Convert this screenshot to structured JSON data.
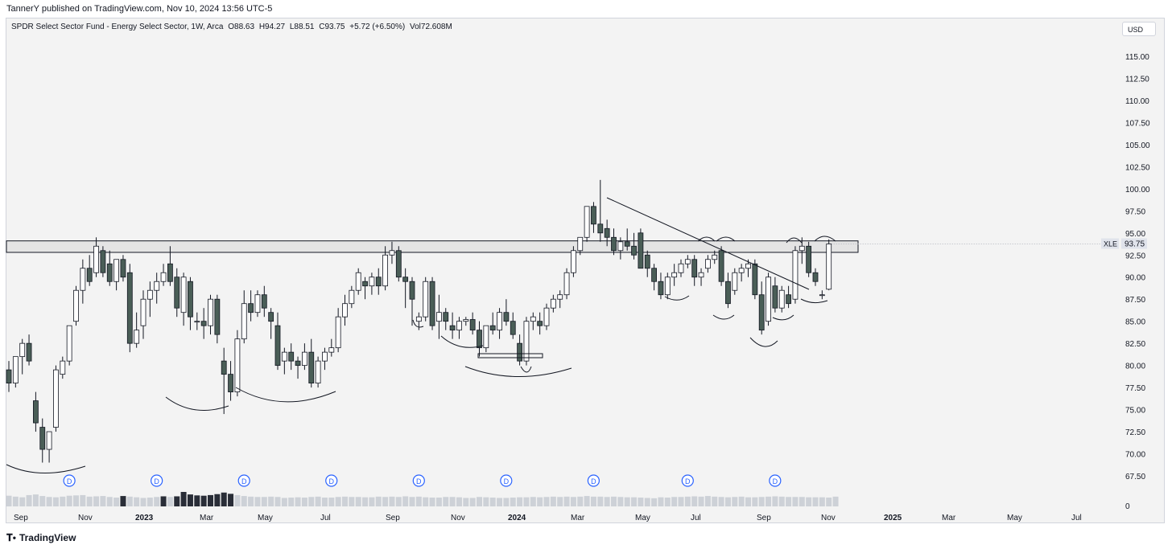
{
  "header": {
    "published": "TannerY published on TradingView.com, Nov 10, 2024 13:56 UTC-5"
  },
  "legend": {
    "symbol": "SPDR Select Sector Fund - Energy Select Sector, 1W, Arca",
    "open": "O88.63",
    "high": "H94.27",
    "low": "L88.51",
    "close": "C93.75",
    "change": "+5.72 (+6.50%)",
    "volume": "Vol72.608M"
  },
  "currency": "USD",
  "price_tag": {
    "symbol": "XLE",
    "price": "93.75"
  },
  "footer": {
    "brand": "TradingView"
  },
  "colors": {
    "up": "#ffffff",
    "down": "#4a5e57",
    "wick": "#131722",
    "background": "#f3f3f3",
    "dividend": "#2962ff"
  },
  "chart_data": {
    "type": "candlestick",
    "title": "",
    "y_ticks": [
      "115.00",
      "112.50",
      "110.00",
      "107.50",
      "105.00",
      "102.50",
      "100.00",
      "97.50",
      "95.00",
      "92.50",
      "90.00",
      "87.50",
      "85.00",
      "82.50",
      "80.00",
      "77.50",
      "75.00",
      "72.50",
      "70.00",
      "67.50"
    ],
    "volume_axis_label": "0",
    "x_ticks": [
      {
        "label": "Sep",
        "bold": false
      },
      {
        "label": "Nov",
        "bold": false
      },
      {
        "label": "2023",
        "bold": true
      },
      {
        "label": "Mar",
        "bold": false
      },
      {
        "label": "May",
        "bold": false
      },
      {
        "label": "Jul",
        "bold": false
      },
      {
        "label": "Sep",
        "bold": false
      },
      {
        "label": "Nov",
        "bold": false
      },
      {
        "label": "2024",
        "bold": true
      },
      {
        "label": "Mar",
        "bold": false
      },
      {
        "label": "May",
        "bold": false
      },
      {
        "label": "Jul",
        "bold": false
      },
      {
        "label": "Sep",
        "bold": false
      },
      {
        "label": "Nov",
        "bold": false
      },
      {
        "label": "2025",
        "bold": true
      },
      {
        "label": "Mar",
        "bold": false
      },
      {
        "label": "May",
        "bold": false
      },
      {
        "label": "Jul",
        "bold": false
      }
    ],
    "ylim": [
      66,
      117
    ],
    "resistance_zone": [
      92.8,
      94.1
    ],
    "dividend_marker_label": "D",
    "dividend_week_index": [
      6,
      19,
      32,
      45,
      58,
      71,
      84,
      98,
      111
    ],
    "ohlc": [
      [
        79.5,
        80.5,
        77.0,
        78.0
      ],
      [
        78.0,
        80.5,
        77.5,
        81.0
      ],
      [
        81.0,
        83.0,
        79.0,
        82.5
      ],
      [
        82.5,
        83.5,
        80.0,
        80.5
      ],
      [
        76.0,
        77.0,
        72.5,
        73.5
      ],
      [
        73.0,
        74.0,
        69.0,
        70.5
      ],
      [
        70.5,
        72.5,
        69.0,
        72.5
      ],
      [
        73.0,
        80.0,
        72.5,
        79.5
      ],
      [
        79.0,
        81.0,
        78.5,
        80.5
      ],
      [
        80.5,
        84.5,
        80.0,
        84.5
      ],
      [
        85.0,
        89.0,
        84.5,
        88.5
      ],
      [
        88.5,
        92.0,
        87.0,
        91.0
      ],
      [
        91.0,
        92.5,
        89.0,
        89.5
      ],
      [
        90.5,
        94.5,
        90.0,
        93.5
      ],
      [
        93.0,
        93.5,
        90.0,
        90.5
      ],
      [
        91.5,
        93.0,
        89.0,
        89.5
      ],
      [
        89.5,
        92.0,
        88.5,
        92.0
      ],
      [
        92.0,
        92.5,
        89.5,
        90.0
      ],
      [
        90.5,
        91.5,
        81.5,
        82.5
      ],
      [
        82.5,
        86.0,
        82.0,
        84.0
      ],
      [
        84.5,
        88.5,
        83.0,
        87.5
      ],
      [
        87.5,
        89.5,
        85.5,
        88.5
      ],
      [
        88.5,
        90.5,
        87.0,
        89.5
      ],
      [
        89.5,
        91.5,
        89.0,
        90.5
      ],
      [
        91.5,
        93.5,
        89.0,
        89.5
      ],
      [
        90.0,
        91.0,
        85.5,
        86.5
      ],
      [
        86.0,
        90.5,
        84.5,
        90.0
      ],
      [
        89.5,
        90.0,
        84.0,
        85.5
      ],
      [
        85.0,
        86.0,
        84.0,
        85.0
      ],
      [
        85.0,
        86.5,
        83.0,
        84.5
      ],
      [
        84.5,
        88.0,
        83.5,
        87.5
      ],
      [
        87.5,
        88.0,
        82.5,
        83.5
      ],
      [
        80.5,
        82.0,
        74.5,
        79.0
      ],
      [
        79.0,
        80.5,
        76.0,
        77.0
      ],
      [
        77.0,
        84.0,
        76.5,
        83.0
      ],
      [
        83.0,
        88.5,
        82.5,
        87.0
      ],
      [
        87.0,
        88.5,
        85.0,
        86.0
      ],
      [
        86.0,
        88.5,
        85.5,
        88.0
      ],
      [
        88.0,
        89.0,
        85.5,
        86.5
      ],
      [
        86.0,
        86.5,
        83.0,
        85.0
      ],
      [
        84.5,
        86.0,
        79.5,
        80.0
      ],
      [
        80.5,
        82.0,
        79.0,
        81.5
      ],
      [
        81.5,
        82.5,
        79.5,
        80.5
      ],
      [
        80.5,
        81.0,
        78.5,
        80.0
      ],
      [
        80.0,
        82.5,
        79.5,
        81.5
      ],
      [
        81.5,
        83.0,
        77.5,
        78.0
      ],
      [
        78.0,
        81.0,
        77.5,
        80.5
      ],
      [
        80.5,
        82.0,
        79.5,
        81.5
      ],
      [
        81.5,
        83.0,
        81.0,
        82.0
      ],
      [
        82.0,
        86.5,
        81.5,
        85.5
      ],
      [
        85.5,
        88.0,
        84.5,
        87.0
      ],
      [
        87.0,
        89.0,
        86.5,
        88.5
      ],
      [
        88.5,
        91.0,
        88.0,
        90.5
      ],
      [
        89.5,
        90.0,
        87.5,
        89.0
      ],
      [
        89.0,
        90.5,
        88.0,
        90.0
      ],
      [
        90.0,
        91.0,
        88.0,
        89.0
      ],
      [
        89.0,
        93.5,
        88.5,
        92.5
      ],
      [
        92.5,
        94.0,
        91.5,
        93.0
      ],
      [
        93.0,
        93.5,
        89.5,
        90.0
      ],
      [
        90.0,
        91.0,
        86.5,
        89.5
      ],
      [
        89.5,
        90.0,
        84.5,
        87.5
      ],
      [
        85.0,
        86.0,
        84.0,
        85.5
      ],
      [
        85.5,
        90.0,
        85.0,
        89.5
      ],
      [
        89.5,
        90.0,
        84.0,
        84.5
      ],
      [
        85.0,
        88.0,
        83.0,
        86.0
      ],
      [
        86.0,
        86.5,
        84.0,
        85.0
      ],
      [
        84.5,
        86.0,
        83.0,
        84.0
      ],
      [
        84.0,
        85.5,
        83.0,
        85.0
      ],
      [
        85.0,
        85.5,
        84.5,
        85.2
      ],
      [
        85.2,
        86.0,
        83.5,
        84.0
      ],
      [
        84.0,
        85.0,
        81.0,
        82.0
      ],
      [
        82.0,
        84.5,
        81.5,
        84.5
      ],
      [
        84.5,
        86.0,
        83.5,
        84.0
      ],
      [
        84.0,
        86.5,
        83.0,
        86.0
      ],
      [
        86.0,
        87.5,
        84.5,
        85.0
      ],
      [
        85.0,
        86.0,
        83.0,
        83.5
      ],
      [
        82.5,
        83.5,
        80.0,
        80.5
      ],
      [
        80.5,
        85.5,
        80.0,
        85.0
      ],
      [
        85.0,
        86.0,
        84.0,
        85.5
      ],
      [
        85.0,
        86.0,
        83.5,
        84.5
      ],
      [
        84.5,
        87.0,
        84.0,
        86.5
      ],
      [
        86.5,
        88.0,
        86.0,
        87.5
      ],
      [
        87.5,
        88.5,
        86.5,
        88.0
      ],
      [
        88.0,
        91.0,
        87.5,
        90.5
      ],
      [
        90.5,
        93.5,
        90.0,
        93.0
      ],
      [
        93.0,
        94.5,
        92.5,
        94.5
      ],
      [
        94.5,
        97.5,
        94.0,
        98.0
      ],
      [
        98.0,
        98.5,
        95.0,
        96.0
      ],
      [
        96.0,
        101.0,
        94.0,
        95.0
      ],
      [
        95.5,
        96.5,
        93.5,
        94.5
      ],
      [
        94.5,
        95.5,
        92.5,
        93.0
      ],
      [
        93.0,
        94.5,
        92.0,
        94.0
      ],
      [
        94.0,
        95.5,
        93.0,
        93.5
      ],
      [
        93.5,
        95.0,
        92.0,
        92.5
      ],
      [
        95.0,
        95.5,
        91.0,
        91.0
      ],
      [
        92.5,
        93.0,
        90.0,
        91.0
      ],
      [
        91.0,
        91.5,
        88.5,
        89.5
      ],
      [
        89.5,
        90.5,
        87.5,
        88.0
      ],
      [
        88.0,
        90.5,
        87.5,
        90.0
      ],
      [
        90.0,
        91.5,
        89.0,
        90.5
      ],
      [
        90.5,
        92.0,
        90.0,
        91.5
      ],
      [
        91.5,
        92.5,
        91.0,
        92.0
      ],
      [
        92.0,
        92.5,
        89.0,
        90.0
      ],
      [
        90.0,
        91.0,
        89.0,
        90.5
      ],
      [
        91.0,
        92.5,
        90.5,
        92.0
      ],
      [
        92.0,
        93.0,
        91.5,
        92.5
      ],
      [
        93.0,
        93.5,
        89.0,
        89.5
      ],
      [
        89.5,
        90.5,
        86.5,
        87.0
      ],
      [
        88.5,
        91.0,
        88.0,
        90.5
      ],
      [
        90.5,
        91.5,
        89.5,
        91.0
      ],
      [
        91.0,
        92.0,
        90.0,
        91.5
      ],
      [
        91.5,
        92.0,
        87.5,
        88.0
      ],
      [
        88.0,
        89.5,
        83.5,
        84.0
      ],
      [
        85.0,
        90.5,
        84.5,
        90.0
      ],
      [
        89.0,
        90.0,
        86.0,
        86.5
      ],
      [
        86.5,
        89.0,
        86.0,
        88.5
      ],
      [
        88.0,
        89.0,
        86.5,
        87.0
      ],
      [
        87.5,
        93.5,
        87.0,
        93.0
      ],
      [
        93.0,
        94.5,
        91.5,
        93.5
      ],
      [
        93.5,
        94.0,
        90.0,
        90.5
      ],
      [
        90.5,
        91.0,
        89.0,
        89.5
      ],
      [
        88.0,
        88.5,
        87.5,
        88.0
      ],
      [
        88.63,
        94.27,
        88.51,
        93.75
      ]
    ],
    "volume": [
      34,
      31,
      29,
      36,
      38,
      33,
      30,
      29,
      31,
      34,
      35,
      36,
      31,
      32,
      33,
      30,
      28,
      33,
      31,
      29,
      27,
      28,
      30,
      32,
      30,
      32,
      46,
      38,
      35,
      34,
      36,
      39,
      44,
      40,
      36,
      33,
      31,
      30,
      30,
      31,
      30,
      27,
      28,
      29,
      28,
      30,
      31,
      28,
      28,
      30,
      31,
      30,
      30,
      29,
      29,
      31,
      30,
      31,
      30,
      32,
      30,
      31,
      29,
      28,
      28,
      30,
      30,
      29,
      27,
      27,
      30,
      29,
      28,
      27,
      27,
      28,
      29,
      29,
      30,
      29,
      30,
      31,
      30,
      31,
      30,
      31,
      33,
      31,
      31,
      30,
      31,
      30,
      29,
      29,
      28,
      27,
      26,
      29,
      28,
      30,
      30,
      31,
      32,
      31,
      33,
      31,
      30,
      29,
      30,
      31,
      29,
      29,
      30,
      31,
      32,
      31,
      30,
      30,
      30,
      29,
      29,
      29,
      28,
      31
    ]
  }
}
